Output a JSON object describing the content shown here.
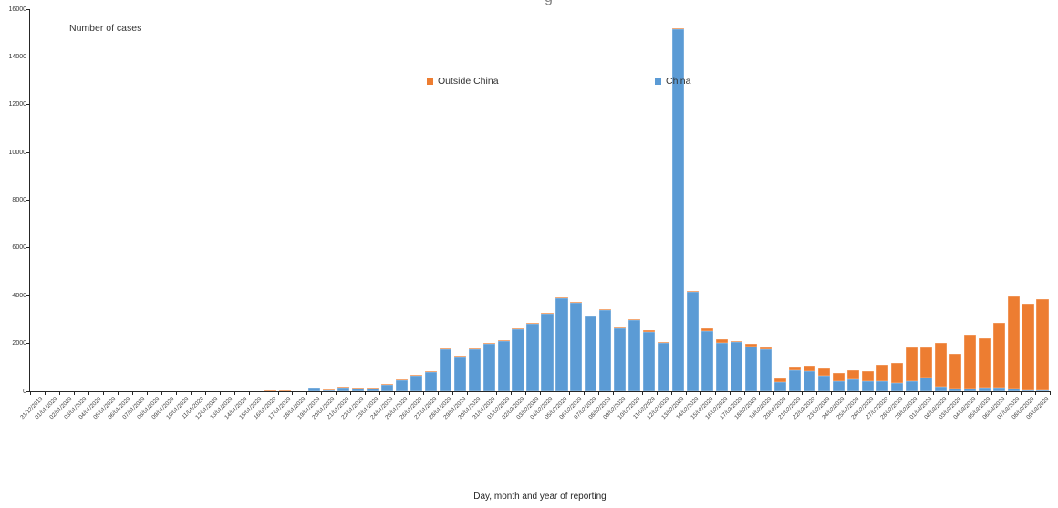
{
  "figure": {
    "clipped_title_fragment": "g",
    "y_axis_caption": "Number of cases",
    "x_axis_title": "Day, month and year of reporting"
  },
  "legend": [
    {
      "label": "Outside China",
      "color": "#ED7D31"
    },
    {
      "label": "China",
      "color": "#5B9BD5"
    }
  ],
  "colors": {
    "axis": "#262626",
    "tick_text": "#404040",
    "background": "#FFFFFF"
  },
  "chart_data": {
    "type": "bar",
    "stacked": true,
    "title": "",
    "xlabel": "Day, month and year of reporting",
    "ylabel": "Number of cases",
    "ylim": [
      0,
      16000
    ],
    "ytick_step": 2000,
    "grid": false,
    "legend_position": "inside-top",
    "categories": [
      "31/12/2019",
      "01/01/2020",
      "02/01/2020",
      "03/01/2020",
      "04/01/2020",
      "05/01/2020",
      "06/01/2020",
      "07/01/2020",
      "08/01/2020",
      "09/01/2020",
      "10/01/2020",
      "11/01/2020",
      "12/01/2020",
      "13/01/2020",
      "14/01/2020",
      "15/01/2020",
      "16/01/2020",
      "17/01/2020",
      "18/01/2020",
      "19/01/2020",
      "20/01/2020",
      "21/01/2020",
      "22/01/2020",
      "23/01/2020",
      "24/01/2020",
      "25/01/2020",
      "26/01/2020",
      "27/01/2020",
      "28/01/2020",
      "29/01/2020",
      "30/01/2020",
      "31/01/2020",
      "01/02/2020",
      "02/02/2020",
      "03/02/2020",
      "04/02/2020",
      "05/02/2020",
      "06/02/2020",
      "07/02/2020",
      "08/02/2020",
      "09/02/2020",
      "10/02/2020",
      "11/02/2020",
      "12/02/2020",
      "13/02/2020",
      "14/02/2020",
      "15/02/2020",
      "16/02/2020",
      "17/02/2020",
      "18/02/2020",
      "19/02/2020",
      "20/02/2020",
      "21/02/2020",
      "22/02/2020",
      "23/02/2020",
      "24/02/2020",
      "25/02/2020",
      "26/02/2020",
      "27/02/2020",
      "28/02/2020",
      "29/02/2020",
      "01/03/2020",
      "02/03/2020",
      "03/03/2020",
      "04/03/2020",
      "05/03/2020",
      "06/03/2020",
      "07/03/2020",
      "08/03/2020",
      "09/03/2020"
    ],
    "series": [
      {
        "name": "China",
        "color": "#5B9BD5",
        "values": [
          0,
          0,
          0,
          0,
          0,
          0,
          0,
          0,
          0,
          0,
          0,
          0,
          0,
          0,
          0,
          0,
          0,
          0,
          0,
          136,
          19,
          149,
          131,
          97,
          259,
          441,
          665,
          787,
          1753,
          1466,
          1740,
          1980,
          2099,
          2589,
          2825,
          3235,
          3884,
          3694,
          3143,
          3385,
          2652,
          2973,
          2467,
          2015,
          15141,
          4156,
          2538,
          2007,
          2048,
          1888,
          1752,
          394,
          894,
          823,
          648,
          415,
          508,
          406,
          433,
          327,
          427,
          579,
          206,
          125,
          119,
          143,
          146,
          102,
          46,
          45
        ]
      },
      {
        "name": "Outside China",
        "color": "#ED7D31",
        "values": [
          0,
          0,
          0,
          0,
          0,
          0,
          0,
          0,
          0,
          0,
          0,
          0,
          0,
          0,
          0,
          0,
          2,
          3,
          0,
          0,
          2,
          7,
          19,
          5,
          11,
          7,
          18,
          9,
          17,
          15,
          17,
          27,
          27,
          28,
          24,
          18,
          30,
          24,
          43,
          36,
          36,
          44,
          81,
          35,
          66,
          60,
          93,
          155,
          40,
          93,
          97,
          130,
          147,
          262,
          307,
          340,
          375,
          445,
          680,
          860,
          1390,
          1250,
          1815,
          1430,
          2250,
          2080,
          2715,
          3870,
          3610,
          3800
        ]
      }
    ]
  }
}
